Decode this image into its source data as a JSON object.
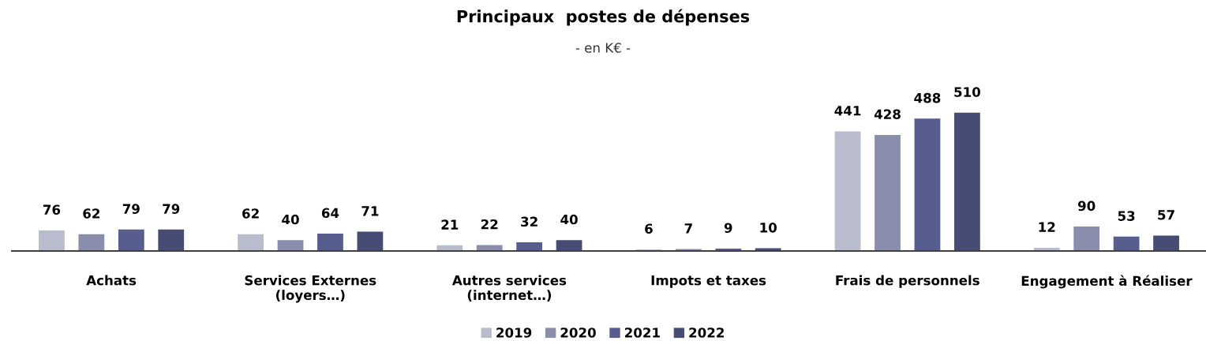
{
  "chart_data": {
    "type": "bar",
    "title": "Principaux  postes de dépenses",
    "subtitle": "- en K€ -",
    "categories": [
      "Achats",
      "Services Externes\n(loyers…)",
      "Autres services\n(internet…)",
      "Impots et taxes",
      "Frais de personnels",
      "Engagement à Réaliser"
    ],
    "series": [
      {
        "name": "2019",
        "color": "#b9bccc",
        "values": [
          76,
          62,
          21,
          6,
          441,
          12
        ]
      },
      {
        "name": "2020",
        "color": "#8a8dab",
        "values": [
          62,
          40,
          22,
          7,
          428,
          90
        ]
      },
      {
        "name": "2021",
        "color": "#575d8c",
        "values": [
          79,
          64,
          32,
          9,
          488,
          53
        ]
      },
      {
        "name": "2022",
        "color": "#464c74",
        "values": [
          79,
          71,
          40,
          10,
          510,
          57
        ]
      }
    ],
    "data_labels": true,
    "legend": "bottom",
    "grid": false,
    "tick_labels": "x"
  }
}
